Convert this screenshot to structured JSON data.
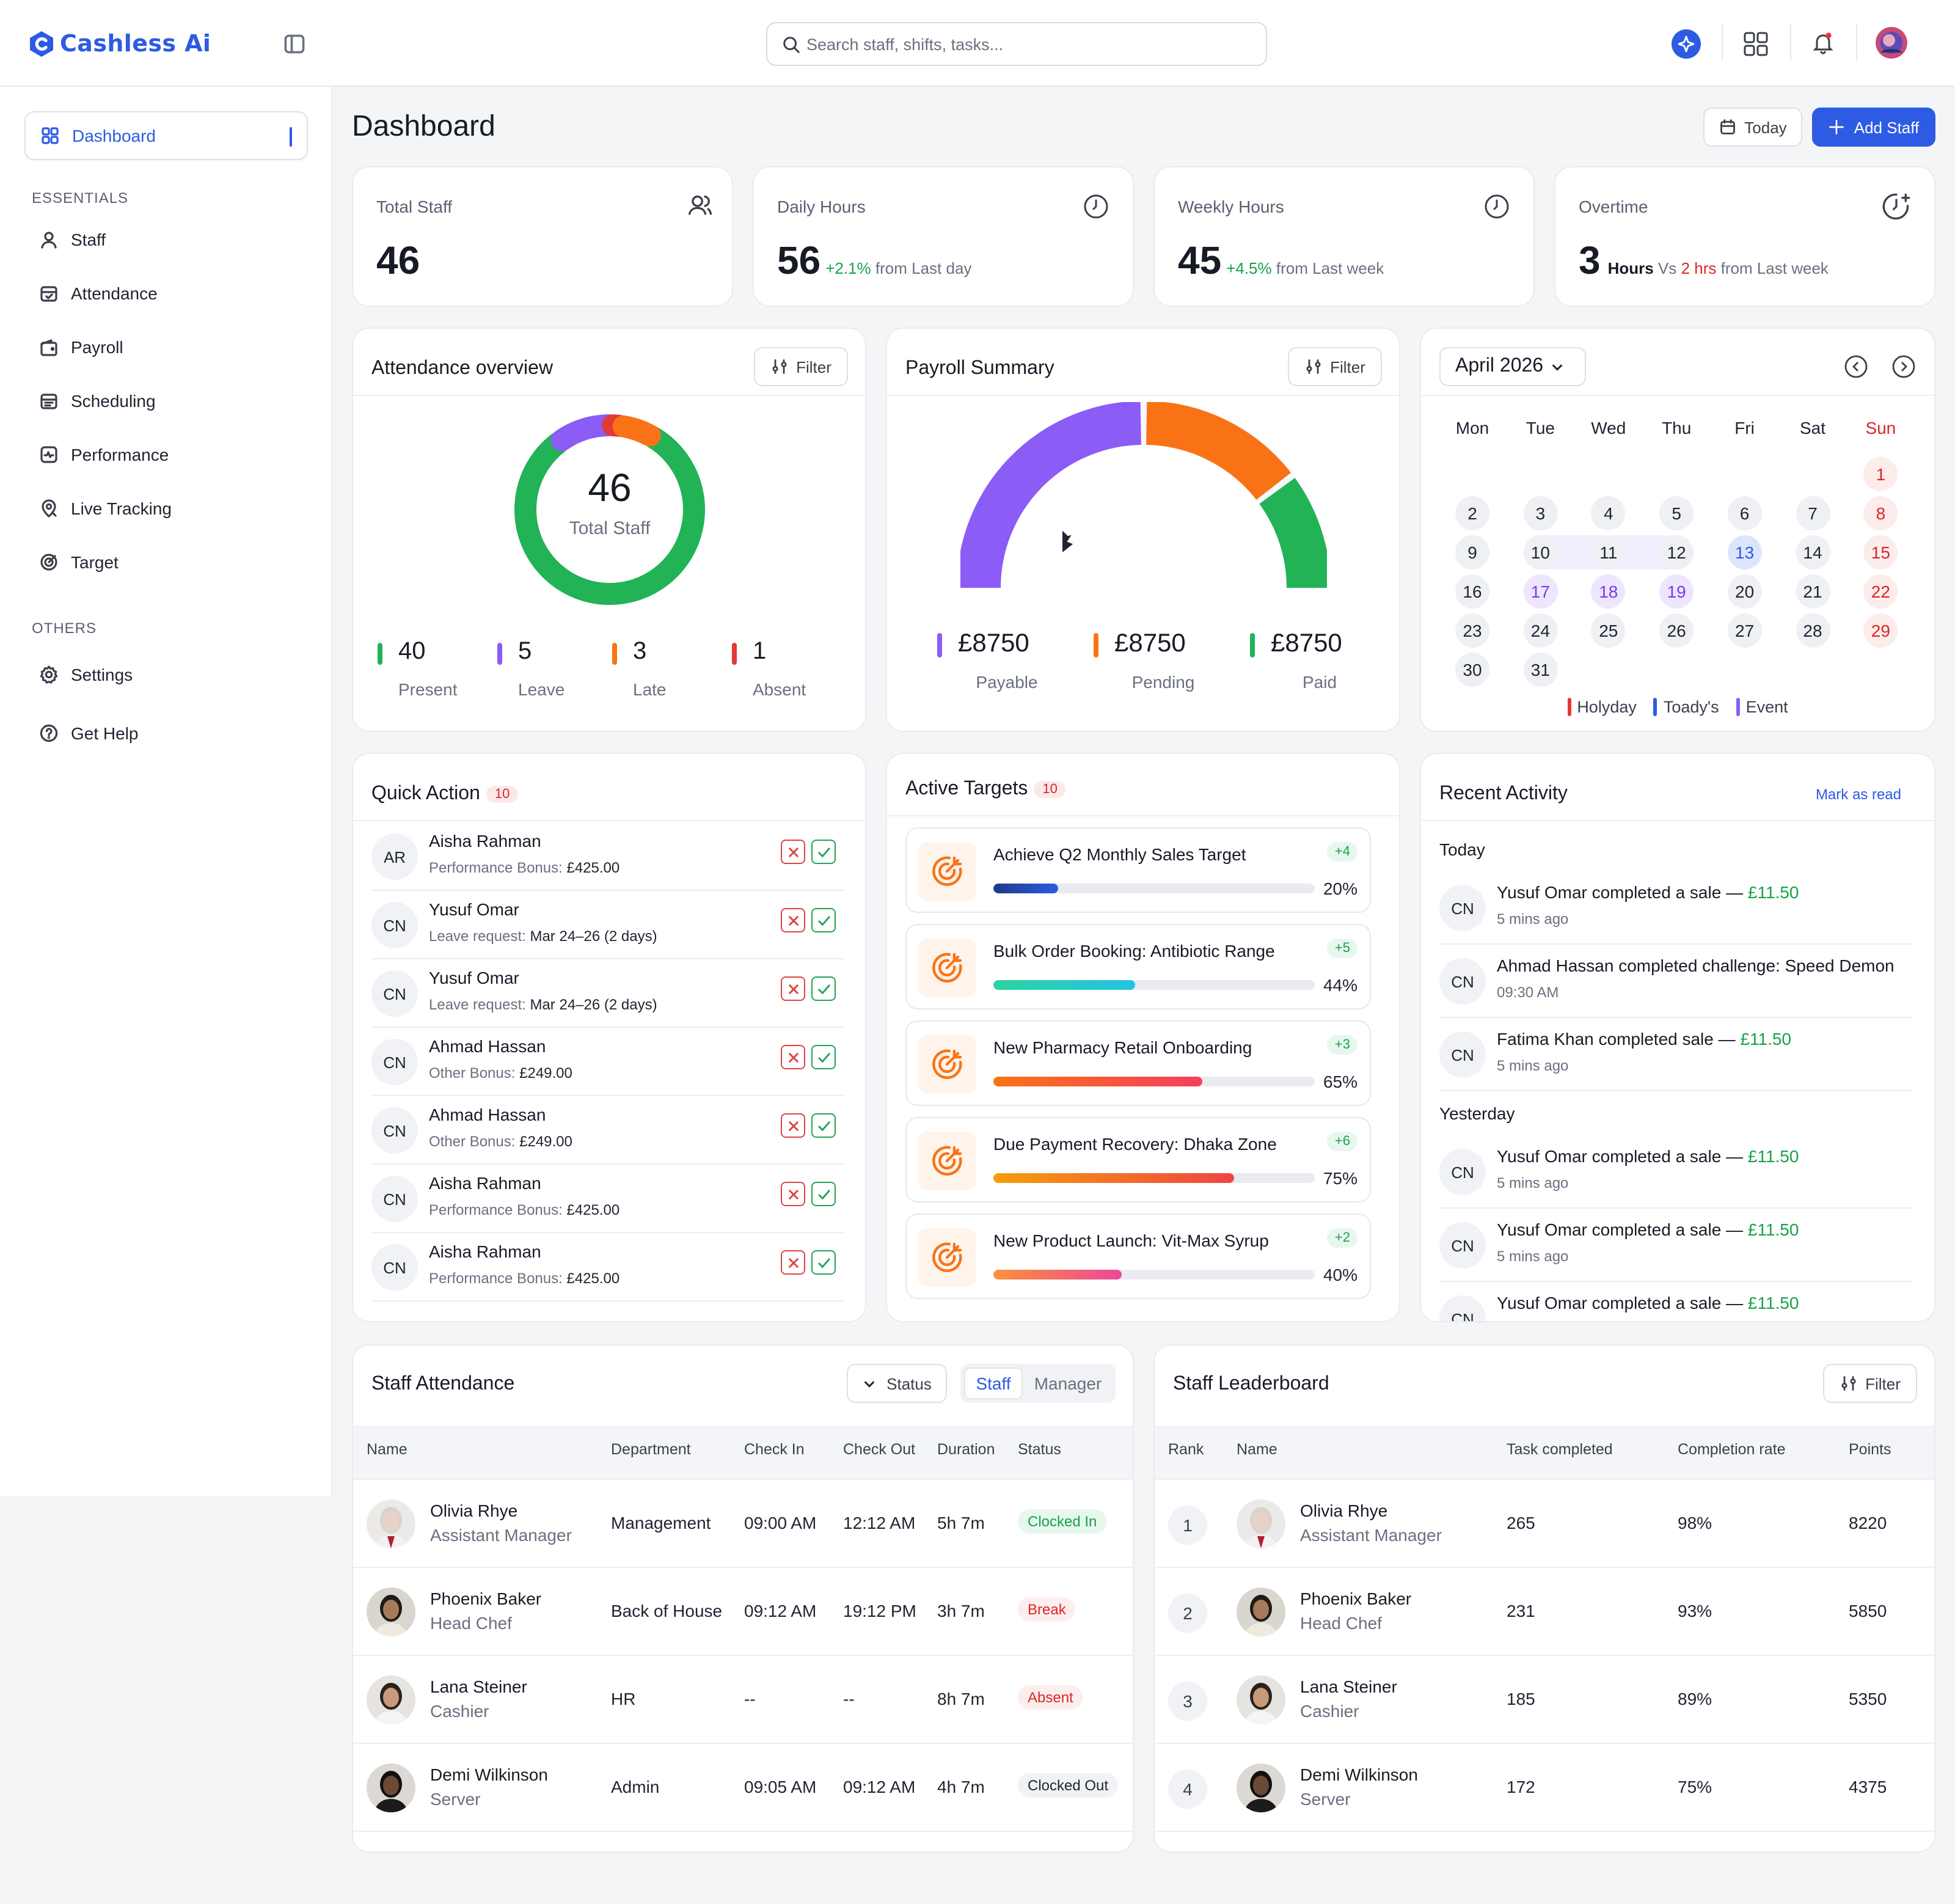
{
  "app": {
    "name": "Cashless Ai",
    "search_placeholder": "Search staff, shifts, tasks..."
  },
  "page": {
    "title": "Dashboard",
    "today_label": "Today",
    "add_staff_label": "Add Staff"
  },
  "sidebar": {
    "dashboard": "Dashboard",
    "section_essentials": "ESSENTIALS",
    "essentials": [
      {
        "label": "Staff",
        "icon": "user-icon"
      },
      {
        "label": "Attendance",
        "icon": "calendar-check-icon"
      },
      {
        "label": "Payroll",
        "icon": "wallet-icon"
      },
      {
        "label": "Scheduling",
        "icon": "calendar-icon"
      },
      {
        "label": "Performance",
        "icon": "activity-icon"
      },
      {
        "label": "Live Tracking",
        "icon": "location-icon"
      },
      {
        "label": "Target",
        "icon": "target-icon"
      }
    ],
    "section_others": "OTHERS",
    "others": [
      {
        "label": "Settings",
        "icon": "gear-icon"
      },
      {
        "label": "Get Help",
        "icon": "help-icon"
      }
    ]
  },
  "stats": [
    {
      "label": "Total Staff",
      "value": "46",
      "delta": "",
      "suffix": ""
    },
    {
      "label": "Daily Hours",
      "value": "56",
      "delta": "+2.1%",
      "suffix": "from Last day"
    },
    {
      "label": "Weekly Hours",
      "value": "45",
      "delta": "+4.5%",
      "suffix": "from Last week"
    },
    {
      "label": "Overtime",
      "value": "3",
      "unit": "Hours",
      "vs": "Vs",
      "delta": "2 hrs",
      "suffix": "from Last week"
    }
  ],
  "filter_label": "Filter",
  "attendance": {
    "title": "Attendance overview",
    "center_value": "46",
    "center_label": "Total Staff",
    "items": [
      {
        "value": "40",
        "label": "Present",
        "color": "#22b357"
      },
      {
        "value": "5",
        "label": "Leave",
        "color": "#8b5cf6"
      },
      {
        "value": "3",
        "label": "Late",
        "color": "#f97316"
      },
      {
        "value": "1",
        "label": "Absent",
        "color": "#e53935"
      }
    ]
  },
  "payroll": {
    "title": "Payroll Summary",
    "items": [
      {
        "value": "£8750",
        "label": "Payable",
        "color": "#8b5cf6"
      },
      {
        "value": "£8750",
        "label": "Pending",
        "color": "#f97316"
      },
      {
        "value": "£8750",
        "label": "Paid",
        "color": "#22b357"
      }
    ]
  },
  "calendar": {
    "month": "April 2026",
    "days": [
      "Mon",
      "Tue",
      "Wed",
      "Thu",
      "Fri",
      "Sat",
      "Sun"
    ],
    "legend": [
      {
        "label": "Holyday",
        "color": "#e53935"
      },
      {
        "label": "Toady's",
        "color": "#2d5be3"
      },
      {
        "label": "Event",
        "color": "#8b5cf6"
      }
    ]
  },
  "quick_action": {
    "title": "Quick Action",
    "count": "10",
    "rows": [
      {
        "initials": "AR",
        "name": "Aisha Rahman",
        "type": "Performance Bonus:",
        "detail": "£425.00"
      },
      {
        "initials": "CN",
        "name": "Yusuf Omar",
        "type": "Leave request:",
        "detail": "Mar 24–26 (2 days)"
      },
      {
        "initials": "CN",
        "name": "Yusuf Omar",
        "type": "Leave request:",
        "detail": "Mar 24–26 (2 days)"
      },
      {
        "initials": "CN",
        "name": "Ahmad Hassan",
        "type": "Other Bonus:",
        "detail": "£249.00"
      },
      {
        "initials": "CN",
        "name": "Ahmad Hassan",
        "type": "Other Bonus:",
        "detail": "£249.00"
      },
      {
        "initials": "CN",
        "name": "Aisha Rahman",
        "type": "Performance Bonus:",
        "detail": "£425.00"
      },
      {
        "initials": "CN",
        "name": "Aisha Rahman",
        "type": "Performance Bonus:",
        "detail": "£425.00"
      }
    ]
  },
  "targets": {
    "title": "Active Targets",
    "count": "10",
    "items": [
      {
        "title": "Achieve Q2 Monthly Sales Target",
        "delta": "+4",
        "pct": "20%",
        "progress": 0.2
      },
      {
        "title": "Bulk Order Booking: Antibiotic Range",
        "delta": "+5",
        "pct": "44%",
        "progress": 0.44
      },
      {
        "title": "New Pharmacy Retail Onboarding",
        "delta": "+3",
        "pct": "65%",
        "progress": 0.65
      },
      {
        "title": "Due Payment Recovery: Dhaka Zone",
        "delta": "+6",
        "pct": "75%",
        "progress": 0.75
      },
      {
        "title": "New Product Launch: Vit-Max Syrup",
        "delta": "+2",
        "pct": "40%",
        "progress": 0.4
      }
    ]
  },
  "activity": {
    "title": "Recent Activity",
    "mark_read": "Mark as read",
    "today_label": "Today",
    "yesterday_label": "Yesterday",
    "today": [
      {
        "initials": "CN",
        "text": "Yusuf Omar completed a sale —",
        "highlight": "£11.50",
        "time": "5 mins ago",
        "kind": "money"
      },
      {
        "initials": "CN",
        "text": "Ahmad Hassan completed challenge:",
        "highlight": "Speed Demon",
        "time": "09:30 AM",
        "kind": "bold"
      },
      {
        "initials": "CN",
        "text": "Fatima Khan completed sale —",
        "highlight": "£11.50",
        "time": "5 mins ago",
        "kind": "money"
      }
    ],
    "yesterday": [
      {
        "initials": "CN",
        "text": "Yusuf Omar completed a sale —",
        "highlight": "£11.50",
        "time": "5 mins ago",
        "kind": "money"
      },
      {
        "initials": "CN",
        "text": "Yusuf Omar completed a sale —",
        "highlight": "£11.50",
        "time": "5 mins ago",
        "kind": "money"
      },
      {
        "initials": "CN",
        "text": "Yusuf Omar completed a sale —",
        "highlight": "£11.50",
        "time": "",
        "kind": "money"
      }
    ]
  },
  "staff_attendance": {
    "title": "Staff Attendance",
    "status_label": "Status",
    "toggle": [
      "Staff",
      "Manager"
    ],
    "headers": [
      "Name",
      "Department",
      "Check In",
      "Check Out",
      "Duration",
      "Status"
    ],
    "rows": [
      {
        "name": "Olivia Rhye",
        "role": "Assistant Manager",
        "dept": "Management",
        "in": "09:00 AM",
        "out": "12:12 AM",
        "dur": "5h 7m",
        "status": "Clocked In",
        "status_color": "#16a34a",
        "status_bg": "#e8f7ee"
      },
      {
        "name": "Phoenix Baker",
        "role": "Head Chef",
        "dept": "Back of House",
        "in": "09:12 AM",
        "out": "19:12 PM",
        "dur": "3h 7m",
        "status": "Break",
        "status_color": "#dc2626",
        "status_bg": "#fdeeee"
      },
      {
        "name": "Lana Steiner",
        "role": "Cashier",
        "dept": "HR",
        "in": "--",
        "out": "--",
        "dur": "8h 7m",
        "status": "Absent",
        "status_color": "#dc2626",
        "status_bg": "#fdeeee"
      },
      {
        "name": "Demi Wilkinson",
        "role": "Server",
        "dept": "Admin",
        "in": "09:05 AM",
        "out": "09:12 AM",
        "dur": "4h 7m",
        "status": "Clocked Out",
        "status_color": "#1f2430",
        "status_bg": "#f1f2f5"
      }
    ]
  },
  "leaderboard": {
    "title": "Staff Leaderboard",
    "headers": [
      "Rank",
      "Name",
      "Task completed",
      "Completion rate",
      "Points"
    ],
    "rows": [
      {
        "rank": "1",
        "name": "Olivia Rhye",
        "role": "Assistant Manager",
        "tasks": "265",
        "rate": "98%",
        "points": "8220"
      },
      {
        "rank": "2",
        "name": "Phoenix Baker",
        "role": "Head Chef",
        "tasks": "231",
        "rate": "93%",
        "points": "5850"
      },
      {
        "rank": "3",
        "name": "Lana Steiner",
        "role": "Cashier",
        "tasks": "185",
        "rate": "89%",
        "points": "5350"
      },
      {
        "rank": "4",
        "name": "Demi Wilkinson",
        "role": "Server",
        "tasks": "172",
        "rate": "75%",
        "points": "4375"
      }
    ]
  }
}
